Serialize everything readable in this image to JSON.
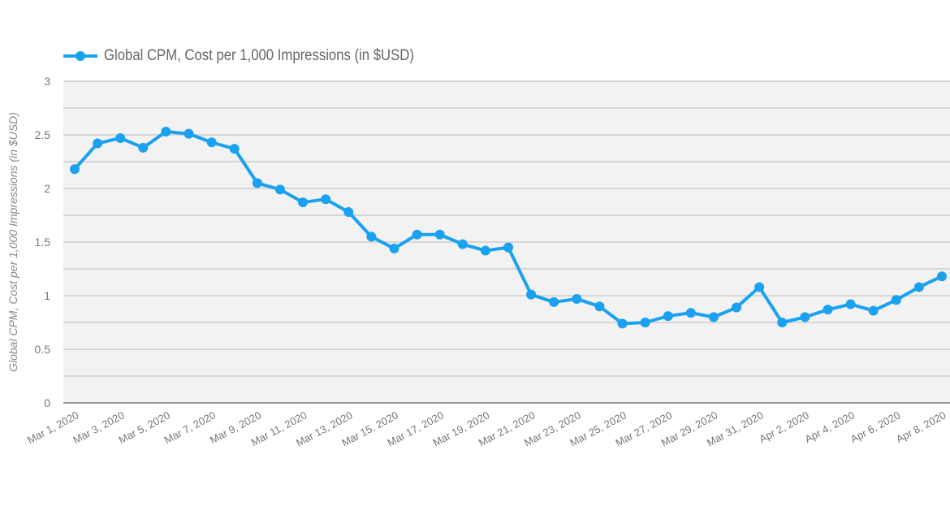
{
  "chart_data": {
    "type": "line",
    "title": "",
    "legend": [
      "Global CPM, Cost per 1,000 Impressions (in $USD)"
    ],
    "legend_position": "top-left",
    "xlabel": "",
    "ylabel": "Global CPM, Cost per 1,000 Impressions (in $USD)",
    "ylim": [
      0,
      3
    ],
    "yticks": [
      "0",
      "0.5",
      "1",
      "1.5",
      "2",
      "2.5",
      "3"
    ],
    "grid": true,
    "x": [
      "Mar 1, 2020",
      "Mar 2, 2020",
      "Mar 3, 2020",
      "Mar 4, 2020",
      "Mar 5, 2020",
      "Mar 6, 2020",
      "Mar 7, 2020",
      "Mar 8, 2020",
      "Mar 9, 2020",
      "Mar 10, 2020",
      "Mar 11, 2020",
      "Mar 12, 2020",
      "Mar 13, 2020",
      "Mar 14, 2020",
      "Mar 15, 2020",
      "Mar 16, 2020",
      "Mar 17, 2020",
      "Mar 18, 2020",
      "Mar 19, 2020",
      "Mar 20, 2020",
      "Mar 21, 2020",
      "Mar 22, 2020",
      "Mar 23, 2020",
      "Mar 24, 2020",
      "Mar 25, 2020",
      "Mar 26, 2020",
      "Mar 27, 2020",
      "Mar 28, 2020",
      "Mar 29, 2020",
      "Mar 30, 2020",
      "Mar 31, 2020",
      "Apr 1, 2020",
      "Apr 2, 2020",
      "Apr 3, 2020",
      "Apr 4, 2020",
      "Apr 5, 2020",
      "Apr 6, 2020",
      "Apr 7, 2020",
      "Apr 8, 2020"
    ],
    "xtick_labels": [
      "Mar 1, 2020",
      "Mar 3, 2020",
      "Mar 5, 2020",
      "Mar 7, 2020",
      "Mar 9, 2020",
      "Mar 11, 2020",
      "Mar 13, 2020",
      "Mar 15, 2020",
      "Mar 17, 2020",
      "Mar 19, 2020",
      "Mar 21, 2020",
      "Mar 23, 2020",
      "Mar 25, 2020",
      "Mar 27, 2020",
      "Mar 29, 2020",
      "Mar 31, 2020",
      "Apr 2, 2020",
      "Apr 4, 2020",
      "Apr 6, 2020",
      "Apr 8, 2020"
    ],
    "series": [
      {
        "name": "Global CPM, Cost per 1,000 Impressions (in $USD)",
        "color": "#1aa1ef",
        "values": [
          2.18,
          2.42,
          2.47,
          2.38,
          2.53,
          2.51,
          2.43,
          2.37,
          2.05,
          1.99,
          1.87,
          1.9,
          1.78,
          1.55,
          1.44,
          1.57,
          1.57,
          1.48,
          1.42,
          1.45,
          1.01,
          0.94,
          0.97,
          0.9,
          0.74,
          0.75,
          0.81,
          0.84,
          0.8,
          0.89,
          1.08,
          0.75,
          0.8,
          0.87,
          0.92,
          0.86,
          0.96,
          1.08,
          1.18
        ]
      }
    ]
  },
  "colors": {
    "series": "#1aa1ef",
    "plot_bg": "#f2f2f2",
    "grid": "#cccccc",
    "text": "#777777"
  }
}
